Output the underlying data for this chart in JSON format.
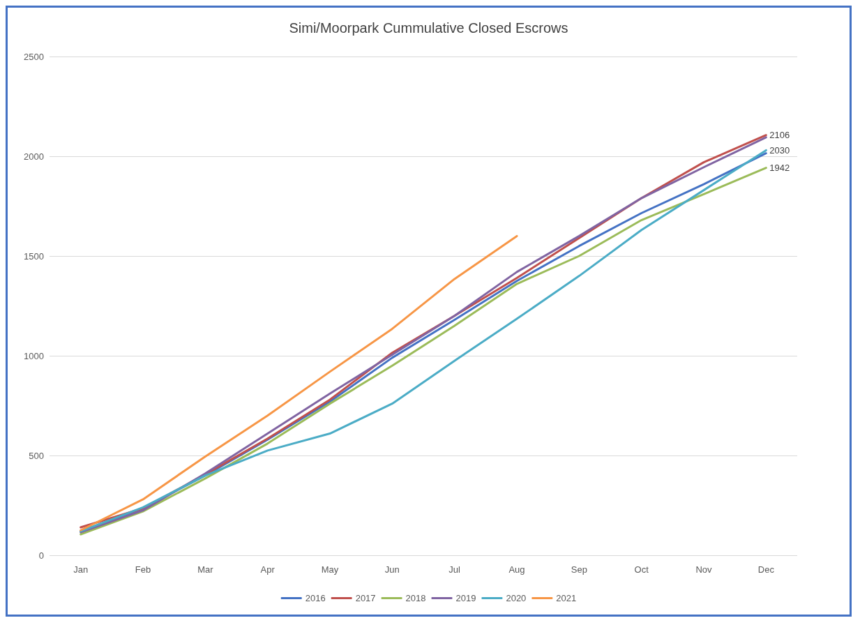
{
  "chart_data": {
    "type": "line",
    "title": "Simi/Moorpark Cummulative Closed Escrows",
    "categories": [
      "Jan",
      "Feb",
      "Mar",
      "Apr",
      "May",
      "Jun",
      "Jul",
      "Aug",
      "Sep",
      "Oct",
      "Nov",
      "Dec"
    ],
    "series": [
      {
        "name": "2016",
        "color": "#4472c4",
        "values": [
          120,
          235,
          400,
          580,
          770,
          990,
          1180,
          1375,
          1550,
          1715,
          1860,
          2015
        ]
      },
      {
        "name": "2017",
        "color": "#c0504d",
        "values": [
          140,
          235,
          405,
          585,
          780,
          1015,
          1200,
          1390,
          1590,
          1790,
          1970,
          2106
        ],
        "value_labels": [
          null,
          null,
          null,
          null,
          null,
          null,
          null,
          null,
          null,
          null,
          null,
          "2106"
        ]
      },
      {
        "name": "2018",
        "color": "#9bbb59",
        "values": [
          105,
          220,
          385,
          560,
          760,
          950,
          1150,
          1360,
          1500,
          1680,
          1810,
          1942
        ],
        "value_labels": [
          null,
          null,
          null,
          null,
          null,
          null,
          null,
          null,
          null,
          null,
          null,
          "1942"
        ]
      },
      {
        "name": "2019",
        "color": "#8064a2",
        "values": [
          115,
          225,
          410,
          610,
          810,
          1005,
          1200,
          1420,
          1600,
          1790,
          1945,
          2095
        ]
      },
      {
        "name": "2020",
        "color": "#4bacc6",
        "values": [
          120,
          240,
          400,
          525,
          610,
          760,
          975,
          1185,
          1400,
          1630,
          1830,
          2030
        ],
        "value_labels": [
          null,
          null,
          null,
          null,
          null,
          null,
          null,
          null,
          null,
          null,
          null,
          "2030"
        ]
      },
      {
        "name": "2021",
        "color": "#f79646",
        "values": [
          125,
          280,
          495,
          700,
          920,
          1135,
          1385,
          1600,
          null,
          null,
          null,
          null
        ]
      }
    ],
    "ylim": [
      0,
      2500
    ],
    "yticks": [
      0,
      500,
      1000,
      1500,
      2000,
      2500
    ],
    "grid": "y",
    "legend": "bottom",
    "marker": "none",
    "line_style": "solid"
  }
}
